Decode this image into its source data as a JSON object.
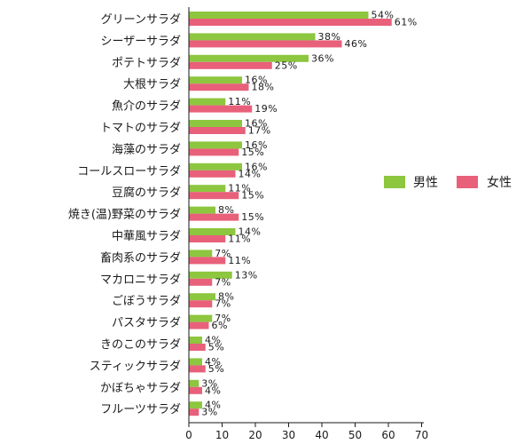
{
  "chart_data": {
    "type": "bar",
    "orientation": "horizontal",
    "categories": [
      "グリーンサラダ",
      "シーザーサラダ",
      "ポテトサラダ",
      "大根サラダ",
      "魚介のサラダ",
      "トマトのサラダ",
      "海藻のサラダ",
      "コールスローサラダ",
      "豆腐のサラダ",
      "焼き(温)野菜のサラダ",
      "中華風サラダ",
      "畜肉系のサラダ",
      "マカロニサラダ",
      "ごぼうサラダ",
      "パスタサラダ",
      "きのこのサラダ",
      "スティックサラダ",
      "かぼちゃサラダ",
      "フルーツサラダ"
    ],
    "category_colors": [
      "#1a1a1a",
      "#1a1a1a",
      "#d6001c",
      "#1a1a1a",
      "#1a1a1a",
      "#1a1a1a",
      "#1a1a1a",
      "#1a1a1a",
      "#1a1a1a",
      "#1a1a1a",
      "#1a1a1a",
      "#1a1a1a",
      "#1a1a1a",
      "#000000",
      "#1a1a1a",
      "#1a1a1a",
      "#1a1a1a",
      "#1a1a1a",
      "#1a1a1a"
    ],
    "series": [
      {
        "name": "男性",
        "color": "#8dc63f",
        "values": [
          54,
          38,
          36,
          16,
          11,
          16,
          16,
          16,
          11,
          8,
          14,
          7,
          13,
          8,
          7,
          4,
          4,
          3,
          4
        ],
        "labels": [
          "54%",
          "38%",
          "36%",
          "16%",
          "11%",
          "16%",
          "16%",
          "16%",
          "11%",
          "8%",
          "14%",
          "7%",
          "13%",
          "8%",
          "7%",
          "4%",
          "4%",
          "3%",
          "4%"
        ]
      },
      {
        "name": "女性",
        "color": "#e8607a",
        "values": [
          61,
          46,
          25,
          18,
          19,
          17,
          15,
          14,
          15,
          15,
          11,
          11,
          7,
          7,
          6,
          5,
          5,
          4,
          3
        ],
        "labels": [
          "61%",
          "46%",
          "25%",
          "18%",
          "19%",
          "17%",
          "15%",
          "14%",
          "15%",
          "15%",
          "11%",
          "11%",
          "7%",
          "7%",
          "6%",
          "5%",
          "5%",
          "4%",
          "3%"
        ]
      }
    ],
    "xlim": [
      0,
      70
    ],
    "xticks": [
      "0",
      "10",
      "20",
      "30",
      "40",
      "50",
      "60",
      "70"
    ],
    "legend": "right"
  }
}
